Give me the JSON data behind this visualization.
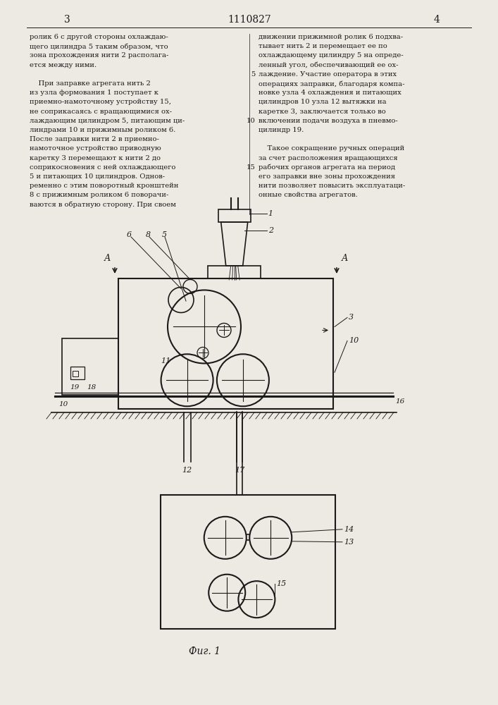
{
  "page_bg": "#ede9e3",
  "text_color": "#1a1a1a",
  "line_color": "#1a1a1a",
  "title_num": "1110827",
  "page_num_left": "3",
  "page_num_right": "4",
  "fig_caption": "Фиг. 1",
  "left_col_lines": [
    "ролик 6 с другой стороны охлаждаю-",
    "щего цилиндра 5 таким образом, что",
    "зона прохождения нити 2 располага-",
    "ется между ними.",
    "",
    "    При заправке агрегата нить 2",
    "из узла формования 1 поступает к",
    "приемно-намоточному устройству 15,",
    "не соприкасаясь с вращающимися ох-",
    "лаждающим цилиндром 5, питающим ци-",
    "линдрами 10 и прижимным роликом 6.",
    "После заправки нити 2 в приемно-",
    "намоточное устройство приводную",
    "каретку 3 перемещают к нити 2 до",
    "соприкосновения с ней охлаждающего",
    "5 и питающих 10 цилиндров. Однов-",
    "ременно с этим поворотный кронштейн",
    "8 с прижимным роликом 6 поворачи-",
    "ваются в обратную сторону. При своем"
  ],
  "right_col_lines": [
    "движении прижимной ролик 6 подхва-",
    "тывает нить 2 и перемещает ее по",
    "охлаждающему цилиндру 5 на опреде-",
    "ленный угол, обеспечивающий ее ох-",
    "лаждение. Участие оператора в этих",
    "операциях заправки, благодаря компа-",
    "новке узла 4 охлаждения и питающих",
    "цилиндров 10 узла 12 вытяжки на",
    "каретке 3, заключается только во",
    "включении подачи воздуха в пневмо-",
    "цилиндр 19.",
    "",
    "    Такое сокращение ручных операций",
    "за счет расположения вращающихся",
    "рабочих органов агрегата на период",
    "его заправки вне зоны прохождения",
    "нити позволяет повысить эксплуатаци-",
    "онные свойства агрегатов."
  ],
  "right_col_line_numbers": [
    null,
    null,
    null,
    null,
    "5",
    null,
    null,
    null,
    null,
    "10",
    null,
    null,
    null,
    null,
    "15",
    null,
    null
  ]
}
